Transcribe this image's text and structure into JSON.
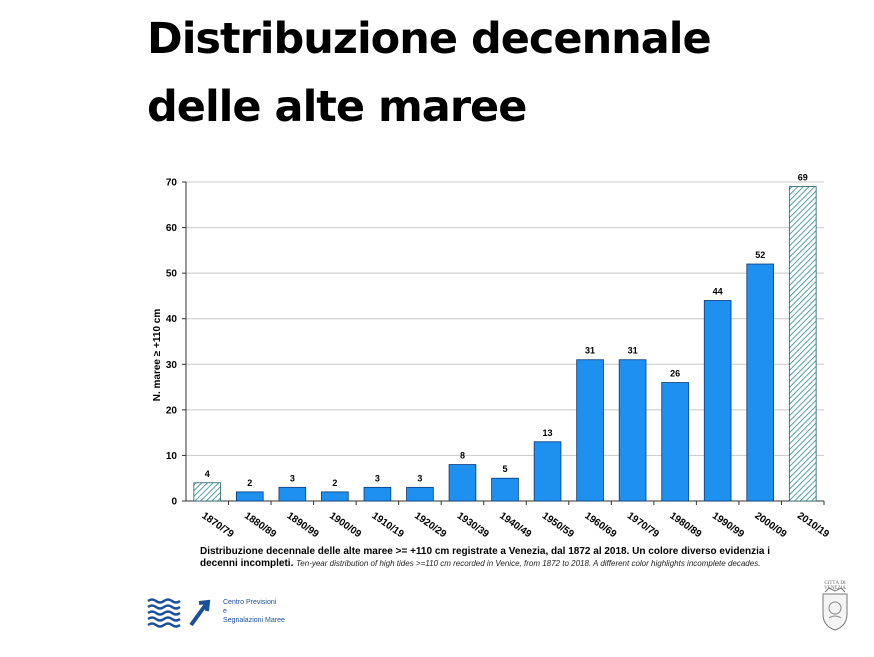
{
  "title": {
    "line1": "Distribuzione decennale",
    "line2": "delle alte maree"
  },
  "caption": {
    "italian_bold": "Distribuzione decennale delle alte maree >= +110 cm registrate a Venezia, dal 1872 al 2018. Un colore diverso evidenzia i decenni incompleti.",
    "english_italic": "Ten-year distribution of high tides >=110 cm recorded in Venice, from 1872 to 2018. A different color highlights incomplete decades."
  },
  "footer": {
    "line1": "Centro Previsioni",
    "line2": "e",
    "line3": "Segnalazioni Maree"
  },
  "colors": {
    "bar": "#1e90f0",
    "bar_edge": "#0a3a7a",
    "hatch": "#2a8a96",
    "logo_blue": "#1a4f9c"
  },
  "chart_data": {
    "type": "bar",
    "title": "",
    "xlabel": "",
    "ylabel": "N. maree ≥ +110 cm",
    "ylim": [
      0,
      70
    ],
    "yticks": [
      0,
      10,
      20,
      30,
      40,
      50,
      60,
      70
    ],
    "grid": true,
    "categories": [
      "1870/79",
      "1880/89",
      "1890/99",
      "1900/09",
      "1910/19",
      "1920/29",
      "1930/39",
      "1940/49",
      "1950/59",
      "1960/69",
      "1970/79",
      "1980/89",
      "1990/99",
      "2000/09",
      "2010/19"
    ],
    "values": [
      4,
      2,
      3,
      2,
      3,
      3,
      8,
      5,
      13,
      31,
      31,
      26,
      44,
      52,
      69
    ],
    "incomplete": [
      true,
      false,
      false,
      false,
      false,
      false,
      false,
      false,
      false,
      false,
      false,
      false,
      false,
      false,
      true
    ],
    "data_labels": true
  }
}
